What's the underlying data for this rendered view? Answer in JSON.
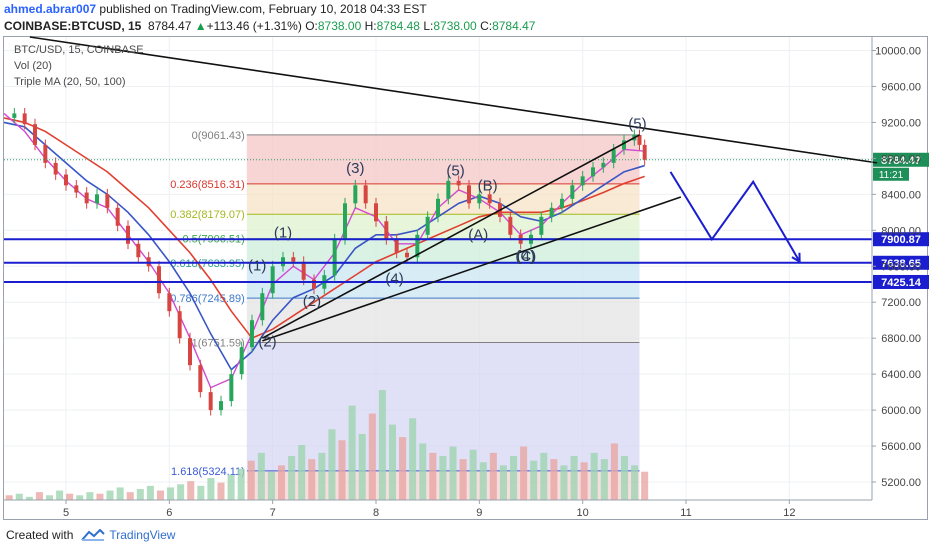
{
  "header": {
    "user": "ahmed.abrar007",
    "published_text": " published on TradingView.com, February 10, 2018 04:33 EST",
    "symbol": "COINBASE:BTCUSD, 15",
    "last": "8784.47",
    "change": "+113.46 (+1.31%)",
    "o_label": "O:",
    "o_value": "8738.00",
    "h_label": "H:",
    "h_value": "8784.48",
    "l_label": "L:",
    "l_value": "8738.00",
    "c_label": "C:",
    "c_value": "8784.47",
    "up_arrow_icon": "triangle-up-icon"
  },
  "legend": {
    "symbol": "BTC/USD, 15, COINBASE",
    "vol": "Vol (20)",
    "ma": "Triple MA (20, 50, 100)"
  },
  "footer": {
    "created_with": "Created with",
    "brand": "TradingView",
    "logo_icon": "tradingview-logo-icon"
  },
  "chart_data": {
    "type": "line",
    "title": "BTC/USD, 15, COINBASE",
    "xlabel": "",
    "ylabel": "",
    "x_ticks": [
      "5",
      "6",
      "7",
      "8",
      "9",
      "10",
      "11",
      "12"
    ],
    "x_range": [
      4.4,
      12.8
    ],
    "y_ticks": [
      5200,
      5600,
      6000,
      6400,
      6800,
      7200,
      7600,
      8000,
      8400,
      8800,
      9200,
      9600,
      10000
    ],
    "y_tick_labels": [
      "5200.00",
      "5600.00",
      "6000.00",
      "6400.00",
      "6800.00",
      "7200.00",
      "7600.00",
      "8000.00",
      "8400.00",
      "8800.00",
      "9200.00",
      "9600.00",
      "10000.00"
    ],
    "ylim": [
      5000,
      10150
    ],
    "price": [
      [
        4.4,
        9250
      ],
      [
        4.5,
        9300
      ],
      [
        4.6,
        9180
      ],
      [
        4.7,
        8950
      ],
      [
        4.8,
        8750
      ],
      [
        4.9,
        8620
      ],
      [
        5.0,
        8500
      ],
      [
        5.1,
        8420
      ],
      [
        5.2,
        8300
      ],
      [
        5.3,
        8400
      ],
      [
        5.4,
        8250
      ],
      [
        5.5,
        8050
      ],
      [
        5.6,
        7850
      ],
      [
        5.7,
        7700
      ],
      [
        5.8,
        7600
      ],
      [
        5.9,
        7300
      ],
      [
        6.0,
        7100
      ],
      [
        6.1,
        6800
      ],
      [
        6.2,
        6500
      ],
      [
        6.3,
        6200
      ],
      [
        6.4,
        6000
      ],
      [
        6.5,
        6100
      ],
      [
        6.6,
        6400
      ],
      [
        6.7,
        6700
      ],
      [
        6.8,
        7000
      ],
      [
        6.9,
        7300
      ],
      [
        7.0,
        7600
      ],
      [
        7.1,
        7700
      ],
      [
        7.2,
        7650
      ],
      [
        7.3,
        7450
      ],
      [
        7.4,
        7350
      ],
      [
        7.5,
        7500
      ],
      [
        7.6,
        7900
      ],
      [
        7.7,
        8300
      ],
      [
        7.8,
        8500
      ],
      [
        7.9,
        8300
      ],
      [
        8.0,
        8100
      ],
      [
        8.1,
        7900
      ],
      [
        8.2,
        7750
      ],
      [
        8.3,
        7700
      ],
      [
        8.4,
        7950
      ],
      [
        8.5,
        8150
      ],
      [
        8.6,
        8350
      ],
      [
        8.7,
        8550
      ],
      [
        8.8,
        8500
      ],
      [
        8.9,
        8300
      ],
      [
        9.0,
        8400
      ],
      [
        9.1,
        8300
      ],
      [
        9.2,
        8150
      ],
      [
        9.3,
        7950
      ],
      [
        9.4,
        7850
      ],
      [
        9.5,
        7950
      ],
      [
        9.6,
        8150
      ],
      [
        9.7,
        8250
      ],
      [
        9.8,
        8350
      ],
      [
        9.9,
        8500
      ],
      [
        10.0,
        8600
      ],
      [
        10.1,
        8700
      ],
      [
        10.2,
        8750
      ],
      [
        10.3,
        8900
      ],
      [
        10.4,
        9000
      ],
      [
        10.5,
        9060
      ],
      [
        10.55,
        8950
      ],
      [
        10.6,
        8784.47
      ]
    ],
    "ma20": [
      [
        4.4,
        9300
      ],
      [
        4.6,
        9100
      ],
      [
        4.8,
        8800
      ],
      [
        5.0,
        8550
      ],
      [
        5.2,
        8350
      ],
      [
        5.4,
        8250
      ],
      [
        5.6,
        7950
      ],
      [
        5.8,
        7650
      ],
      [
        6.0,
        7300
      ],
      [
        6.2,
        6800
      ],
      [
        6.4,
        6250
      ],
      [
        6.6,
        6350
      ],
      [
        6.8,
        6850
      ],
      [
        7.0,
        7400
      ],
      [
        7.2,
        7600
      ],
      [
        7.4,
        7450
      ],
      [
        7.6,
        7750
      ],
      [
        7.8,
        8250
      ],
      [
        8.0,
        8150
      ],
      [
        8.2,
        7850
      ],
      [
        8.4,
        7850
      ],
      [
        8.6,
        8250
      ],
      [
        8.8,
        8450
      ],
      [
        9.0,
        8350
      ],
      [
        9.2,
        8200
      ],
      [
        9.4,
        7950
      ],
      [
        9.6,
        8050
      ],
      [
        9.8,
        8300
      ],
      [
        10.0,
        8520
      ],
      [
        10.2,
        8700
      ],
      [
        10.4,
        8900
      ],
      [
        10.6,
        8880
      ]
    ],
    "ma50": [
      [
        4.4,
        9200
      ],
      [
        4.6,
        9150
      ],
      [
        4.8,
        8950
      ],
      [
        5.0,
        8750
      ],
      [
        5.2,
        8550
      ],
      [
        5.4,
        8400
      ],
      [
        5.6,
        8200
      ],
      [
        5.8,
        7950
      ],
      [
        6.0,
        7650
      ],
      [
        6.2,
        7300
      ],
      [
        6.4,
        6850
      ],
      [
        6.6,
        6450
      ],
      [
        6.8,
        6650
      ],
      [
        7.0,
        7000
      ],
      [
        7.2,
        7250
      ],
      [
        7.4,
        7350
      ],
      [
        7.6,
        7500
      ],
      [
        7.8,
        7800
      ],
      [
        8.0,
        7950
      ],
      [
        8.2,
        7950
      ],
      [
        8.4,
        8000
      ],
      [
        8.6,
        8150
      ],
      [
        8.8,
        8300
      ],
      [
        9.0,
        8380
      ],
      [
        9.2,
        8300
      ],
      [
        9.4,
        8150
      ],
      [
        9.6,
        8100
      ],
      [
        9.8,
        8200
      ],
      [
        10.0,
        8350
      ],
      [
        10.2,
        8500
      ],
      [
        10.4,
        8650
      ],
      [
        10.6,
        8720
      ]
    ],
    "ma100": [
      [
        4.4,
        9250
      ],
      [
        4.6,
        9200
      ],
      [
        4.8,
        9100
      ],
      [
        5.0,
        8950
      ],
      [
        5.2,
        8800
      ],
      [
        5.4,
        8650
      ],
      [
        5.6,
        8450
      ],
      [
        5.8,
        8250
      ],
      [
        6.0,
        8000
      ],
      [
        6.2,
        7750
      ],
      [
        6.4,
        7450
      ],
      [
        6.6,
        7100
      ],
      [
        6.8,
        6800
      ],
      [
        7.0,
        6900
      ],
      [
        7.2,
        7050
      ],
      [
        7.4,
        7200
      ],
      [
        7.6,
        7350
      ],
      [
        7.8,
        7500
      ],
      [
        8.0,
        7650
      ],
      [
        8.2,
        7750
      ],
      [
        8.4,
        7850
      ],
      [
        8.6,
        7950
      ],
      [
        8.8,
        8050
      ],
      [
        9.0,
        8150
      ],
      [
        9.2,
        8200
      ],
      [
        9.4,
        8200
      ],
      [
        9.6,
        8200
      ],
      [
        9.8,
        8250
      ],
      [
        10.0,
        8330
      ],
      [
        10.2,
        8420
      ],
      [
        10.4,
        8520
      ],
      [
        10.6,
        8600
      ]
    ],
    "volume": [
      3,
      4,
      2,
      5,
      3,
      6,
      4,
      3,
      5,
      4,
      6,
      8,
      5,
      7,
      9,
      6,
      8,
      10,
      12,
      9,
      14,
      11,
      16,
      20,
      25,
      30,
      18,
      22,
      28,
      35,
      26,
      30,
      45,
      38,
      60,
      42,
      55,
      70,
      48,
      40,
      52,
      36,
      30,
      28,
      34,
      26,
      32,
      24,
      30,
      22,
      28,
      34,
      25,
      30,
      26,
      22,
      28,
      24,
      30,
      26,
      36,
      28,
      22,
      18
    ],
    "fib": {
      "x_start": 6.75,
      "x_end": 10.55,
      "levels": [
        {
          "ratio": "0",
          "price": 9061.43,
          "label": "0(9061.43)",
          "color": "#808080",
          "fill": "#f4c7c7"
        },
        {
          "ratio": "0.236",
          "price": 8516.31,
          "label": "0.236(8516.31)",
          "color": "#d9382e",
          "fill": "#f6e3c6"
        },
        {
          "ratio": "0.382",
          "price": 8179.07,
          "label": "0.382(8179.07)",
          "color": "#a5b820",
          "fill": "#dff2cf"
        },
        {
          "ratio": "0.5",
          "price": 7906.51,
          "label": "0.5(7906.51)",
          "color": "#3aa84a",
          "fill": "#cdeed9"
        },
        {
          "ratio": "0.618",
          "price": 7633.95,
          "label": "0.618(7633.95)",
          "color": "#2f9e8f",
          "fill": "#cbe6f2"
        },
        {
          "ratio": "0.786",
          "price": 7245.89,
          "label": "0.786(7245.89)",
          "color": "#3c78c8",
          "fill": "#e4e4e4"
        },
        {
          "ratio": "1",
          "price": 6751.59,
          "label": "1(6751.59)",
          "color": "#808080",
          "fill": "#d5d5f3"
        },
        {
          "ratio": "1.618",
          "price": 5324.11,
          "label": "1.618(5324.11)",
          "color": "#3b5bd6",
          "fill": "#f3d1d6"
        }
      ]
    },
    "horizontal_levels": [
      {
        "price": 7900.87,
        "label": "7900.87"
      },
      {
        "price": 7638.65,
        "label": "7638.65"
      },
      {
        "price": 7425.14,
        "label": "7425.14"
      }
    ],
    "last_price": {
      "price": 8784.47,
      "label": "8784.47",
      "countdown": "11:21"
    },
    "trend_lines": [
      {
        "from": [
          4.65,
          10150
        ],
        "to": [
          12.85,
          8750
        ]
      },
      {
        "from": [
          6.9,
          6800
        ],
        "to": [
          10.55,
          9061
        ]
      },
      {
        "from": [
          6.9,
          6770
        ],
        "to": [
          10.95,
          8370
        ]
      }
    ],
    "wave_labels": [
      {
        "text": "(1)",
        "x": 6.85,
        "y": 7550
      },
      {
        "text": "(2)",
        "x": 6.95,
        "y": 6710
      },
      {
        "text": "(1)",
        "x": 7.1,
        "y": 7920
      },
      {
        "text": "(2)",
        "x": 7.38,
        "y": 7160
      },
      {
        "text": "(3)",
        "x": 7.8,
        "y": 8640
      },
      {
        "text": "(4)",
        "x": 8.18,
        "y": 7410
      },
      {
        "text": "(5)",
        "x": 8.77,
        "y": 8610
      },
      {
        "text": "(A)",
        "x": 8.99,
        "y": 7900
      },
      {
        "text": "(B)",
        "x": 9.08,
        "y": 8440
      },
      {
        "text": "(4)",
        "x": 9.45,
        "y": 7660
      },
      {
        "text": "(C)",
        "x": 9.45,
        "y": 7660
      },
      {
        "text": "(5)",
        "x": 10.53,
        "y": 9130
      }
    ],
    "projection_path": [
      [
        10.85,
        8650
      ],
      [
        11.25,
        7900
      ],
      [
        11.65,
        8540
      ],
      [
        12.1,
        7650
      ]
    ]
  }
}
